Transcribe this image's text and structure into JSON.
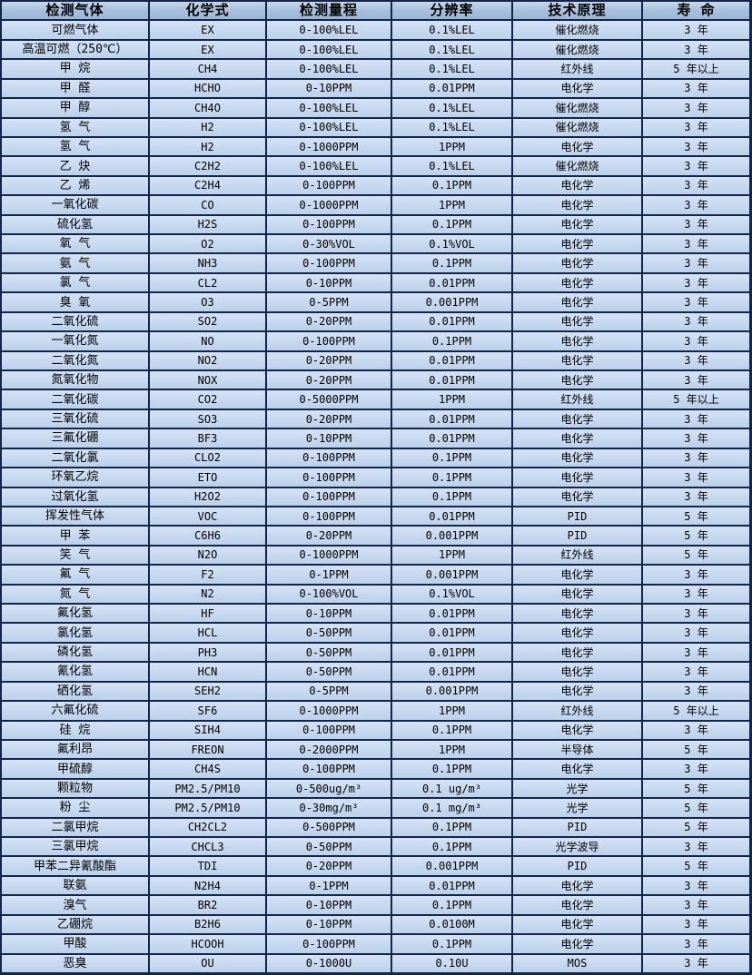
{
  "colors": {
    "grid_border": "#13254a",
    "header_bg": "#a9c1dd",
    "row_bg": "#c6d8f0",
    "text": "#000000"
  },
  "table": {
    "columns": [
      {
        "key": "gas",
        "label": "检测气体"
      },
      {
        "key": "formula",
        "label": "化学式"
      },
      {
        "key": "range",
        "label": "检测量程"
      },
      {
        "key": "resolution",
        "label": "分辨率"
      },
      {
        "key": "principle",
        "label": "技术原理"
      },
      {
        "key": "lifespan",
        "label": "寿 命"
      }
    ],
    "rows": [
      [
        "可燃气体",
        "EX",
        "0-100%LEL",
        "0.1%LEL",
        "催化燃烧",
        "3 年"
      ],
      [
        "高温可燃（250℃）",
        "EX",
        "0-100%LEL",
        "0.1%LEL",
        "催化燃烧",
        "3 年"
      ],
      [
        "甲 烷",
        "CH4",
        "0-100%LEL",
        "0.1%LEL",
        "红外线",
        "5 年以上"
      ],
      [
        "甲 醛",
        "HCHO",
        "0-10PPM",
        "0.01PPM",
        "电化学",
        "3 年"
      ],
      [
        "甲 醇",
        "CH4O",
        "0-100%LEL",
        "0.1%LEL",
        "催化燃烧",
        "3 年"
      ],
      [
        "氢 气",
        "H2",
        "0-100%LEL",
        "0.1%LEL",
        "催化燃烧",
        "3 年"
      ],
      [
        "氢 气",
        "H2",
        "0-1000PPM",
        "1PPM",
        "电化学",
        "3 年"
      ],
      [
        "乙 炔",
        "C2H2",
        "0-100%LEL",
        "0.1%LEL",
        "催化燃烧",
        "3 年"
      ],
      [
        "乙 烯",
        "C2H4",
        "0-100PPM",
        "0.1PPM",
        "电化学",
        "3 年"
      ],
      [
        "一氧化碳",
        "CO",
        "0-1000PPM",
        "1PPM",
        "电化学",
        "3 年"
      ],
      [
        "硫化氢",
        "H2S",
        "0-100PPM",
        "0.1PPM",
        "电化学",
        "3 年"
      ],
      [
        "氧 气",
        "O2",
        "0-30%VOL",
        "0.1%VOL",
        "电化学",
        "3 年"
      ],
      [
        "氨 气",
        "NH3",
        "0-100PPM",
        "0.1PPM",
        "电化学",
        "3 年"
      ],
      [
        "氯 气",
        "CL2",
        "0-10PPM",
        "0.01PPM",
        "电化学",
        "3 年"
      ],
      [
        "臭 氧",
        "O3",
        "0-5PPM",
        "0.001PPM",
        "电化学",
        "3 年"
      ],
      [
        "二氧化硫",
        "SO2",
        "0-20PPM",
        "0.01PPM",
        "电化学",
        "3 年"
      ],
      [
        "一氧化氮",
        "NO",
        "0-100PPM",
        "0.1PPM",
        "电化学",
        "3 年"
      ],
      [
        "二氧化氮",
        "NO2",
        "0-20PPM",
        "0.01PPM",
        "电化学",
        "3 年"
      ],
      [
        "氮氧化物",
        "NOX",
        "0-20PPM",
        "0.01PPM",
        "电化学",
        "3 年"
      ],
      [
        "二氧化碳",
        "CO2",
        "0-5000PPM",
        "1PPM",
        "红外线",
        "5 年以上"
      ],
      [
        "三氧化硫",
        "SO3",
        "0-20PPM",
        "0.01PPM",
        "电化学",
        "3 年"
      ],
      [
        "三氟化硼",
        "BF3",
        "0-10PPM",
        "0.01PPM",
        "电化学",
        "3 年"
      ],
      [
        "二氧化氯",
        "CLO2",
        "0-100PPM",
        "0.1PPM",
        "电化学",
        "3 年"
      ],
      [
        "环氧乙烷",
        "ETO",
        "0-100PPM",
        "0.1PPM",
        "电化学",
        "3 年"
      ],
      [
        "过氧化氢",
        "H2O2",
        "0-100PPM",
        "0.1PPM",
        "电化学",
        "3 年"
      ],
      [
        "挥发性气体",
        "VOC",
        "0-100PPM",
        "0.01PPM",
        "PID",
        "5 年"
      ],
      [
        "甲 苯",
        "C6H6",
        "0-20PPM",
        "0.001PPM",
        "PID",
        "5 年"
      ],
      [
        "笑 气",
        "N2O",
        "0-1000PPM",
        "1PPM",
        "红外线",
        "5 年"
      ],
      [
        "氟 气",
        "F2",
        "0-1PPM",
        "0.001PPM",
        "电化学",
        "3 年"
      ],
      [
        "氮 气",
        "N2",
        "0-100%VOL",
        "0.1%VOL",
        "电化学",
        "3 年"
      ],
      [
        "氟化氢",
        "HF",
        "0-10PPM",
        "0.01PPM",
        "电化学",
        "3 年"
      ],
      [
        "氯化氢",
        "HCL",
        "0-50PPM",
        "0.01PPM",
        "电化学",
        "3 年"
      ],
      [
        "磷化氢",
        "PH3",
        "0-50PPM",
        "0.01PPM",
        "电化学",
        "3 年"
      ],
      [
        "氰化氢",
        "HCN",
        "0-50PPM",
        "0.01PPM",
        "电化学",
        "3 年"
      ],
      [
        "硒化氢",
        "SEH2",
        "0-5PPM",
        "0.001PPM",
        "电化学",
        "3 年"
      ],
      [
        "六氟化硫",
        "SF6",
        "0-1000PPM",
        "1PPM",
        "红外线",
        "5 年以上"
      ],
      [
        "硅 烷",
        "SIH4",
        "0-100PPM",
        "0.1PPM",
        "电化学",
        "3 年"
      ],
      [
        "氟利昂",
        "FREON",
        "0-2000PPM",
        "1PPM",
        "半导体",
        "5 年"
      ],
      [
        "甲硫醇",
        "CH4S",
        "0-100PPM",
        "0.1PPM",
        "电化学",
        "3 年"
      ],
      [
        "颗粒物",
        "PM2.5/PM10",
        "0-500ug/m³",
        "0.1 ug/m³",
        "光学",
        "5 年"
      ],
      [
        "粉 尘",
        "PM2.5/PM10",
        "0-30mg/m³",
        "0.1 mg/m³",
        "光学",
        "5 年"
      ],
      [
        "二氯甲烷",
        "CH2CL2",
        "0-500PPM",
        "0.1PPM",
        "PID",
        "5 年"
      ],
      [
        "三氯甲烷",
        "CHCL3",
        "0-50PPM",
        "0.1PPM",
        "光学波导",
        "3 年"
      ],
      [
        "甲苯二异氰酸酯",
        "TDI",
        "0-20PPM",
        "0.001PPM",
        "PID",
        "5 年"
      ],
      [
        "联氨",
        "N2H4",
        "0-1PPM",
        "0.01PPM",
        "电化学",
        "3 年"
      ],
      [
        "溴气",
        "BR2",
        "0-10PPM",
        "0.1PPM",
        "电化学",
        "3 年"
      ],
      [
        "乙硼烷",
        "B2H6",
        "0-10PPM",
        "0.0100M",
        "电化学",
        "3 年"
      ],
      [
        "甲酸",
        "HCOOH",
        "0-100PPM",
        "0.1PPM",
        "电化学",
        "3 年"
      ],
      [
        "恶臭",
        "OU",
        "0-1000U",
        "0.10U",
        "MOS",
        "3 年"
      ]
    ]
  }
}
